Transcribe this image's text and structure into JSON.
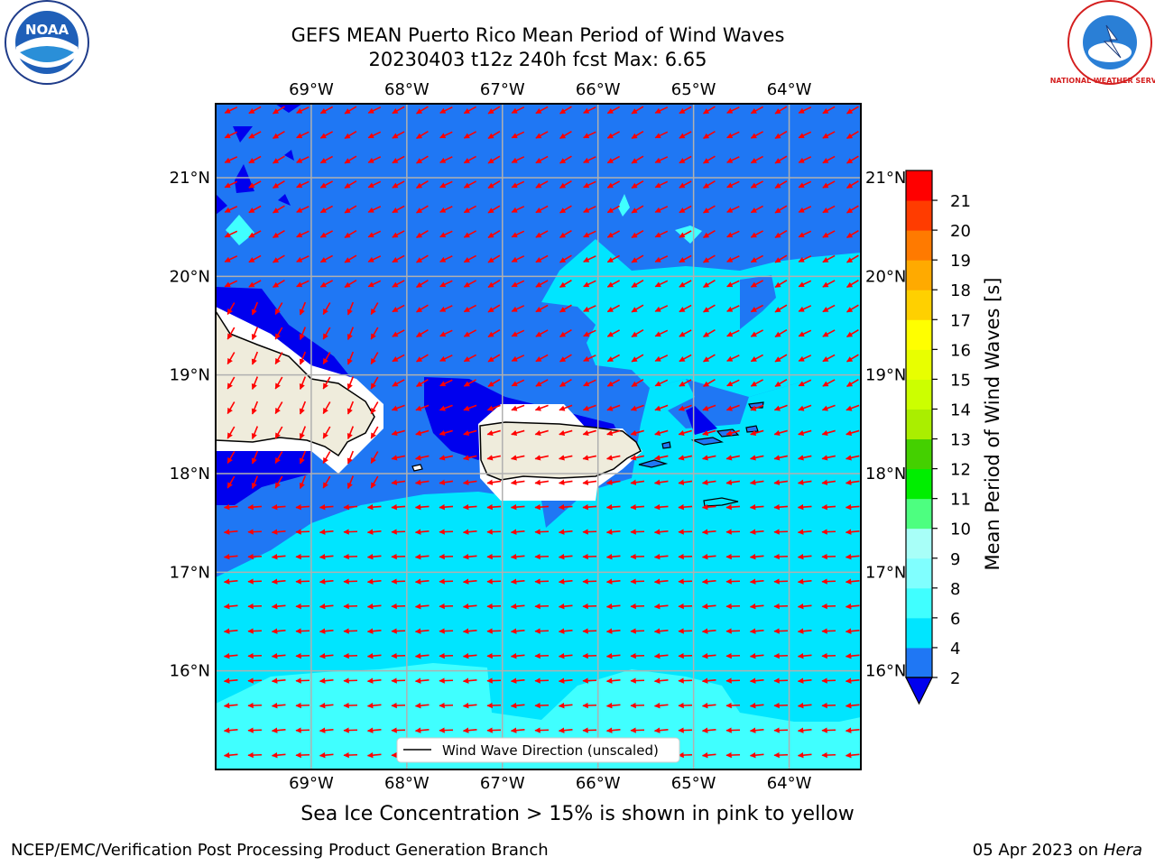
{
  "title_line1": "GEFS MEAN Puerto Rico Mean Period of Wind Waves",
  "title_line2": "20230403 t12z 240h fcst   Max: 6.65",
  "caption": "Sea Ice Concentration > 15% is shown in pink to yellow",
  "footer_left": "NCEP/EMC/Verification Post Processing Product Generation Branch",
  "footer_date": "05 Apr 2023 on ",
  "footer_host": "Hera",
  "logos": {
    "noaa": "NOAA",
    "nws": "NATIONAL WEATHER SERVICE"
  },
  "legend_label": "Wind Wave Direction (unscaled)",
  "colorbar": {
    "label": "Mean Period of Wind Waves [s]",
    "ticks": [
      "2",
      "4",
      "6",
      "8",
      "9",
      "10",
      "11",
      "12",
      "13",
      "14",
      "15",
      "16",
      "17",
      "18",
      "19",
      "20",
      "21"
    ],
    "colors": [
      "#1f77f4",
      "#00e5ff",
      "#40ffff",
      "#80ffff",
      "#a8fff8",
      "#4dff80",
      "#00ee00",
      "#44d000",
      "#aaee00",
      "#ccff00",
      "#e8ff00",
      "#ffff00",
      "#ffd000",
      "#ffaa00",
      "#ff7a00",
      "#ff3c00",
      "#ff0000"
    ],
    "under_color": "#0000ee"
  },
  "chart_data": {
    "type": "heatmap",
    "title": "GEFS MEAN Puerto Rico Mean Period of Wind Waves",
    "forecast": "20230403 t12z 240h fcst",
    "max": 6.65,
    "lon_ticks": [
      "69°W",
      "68°W",
      "67°W",
      "66°W",
      "65°W",
      "64°W"
    ],
    "lat_ticks": [
      "21°N",
      "20°N",
      "19°N",
      "18°N",
      "17°N",
      "16°N"
    ],
    "lon_range": [
      -70.0,
      -63.25
    ],
    "lat_range": [
      15.0,
      21.75
    ],
    "grid": true,
    "levels": [
      2,
      4,
      6,
      8,
      9,
      10,
      11,
      12,
      13,
      14,
      15,
      16,
      17,
      18,
      19,
      20,
      21
    ],
    "units": "s"
  }
}
